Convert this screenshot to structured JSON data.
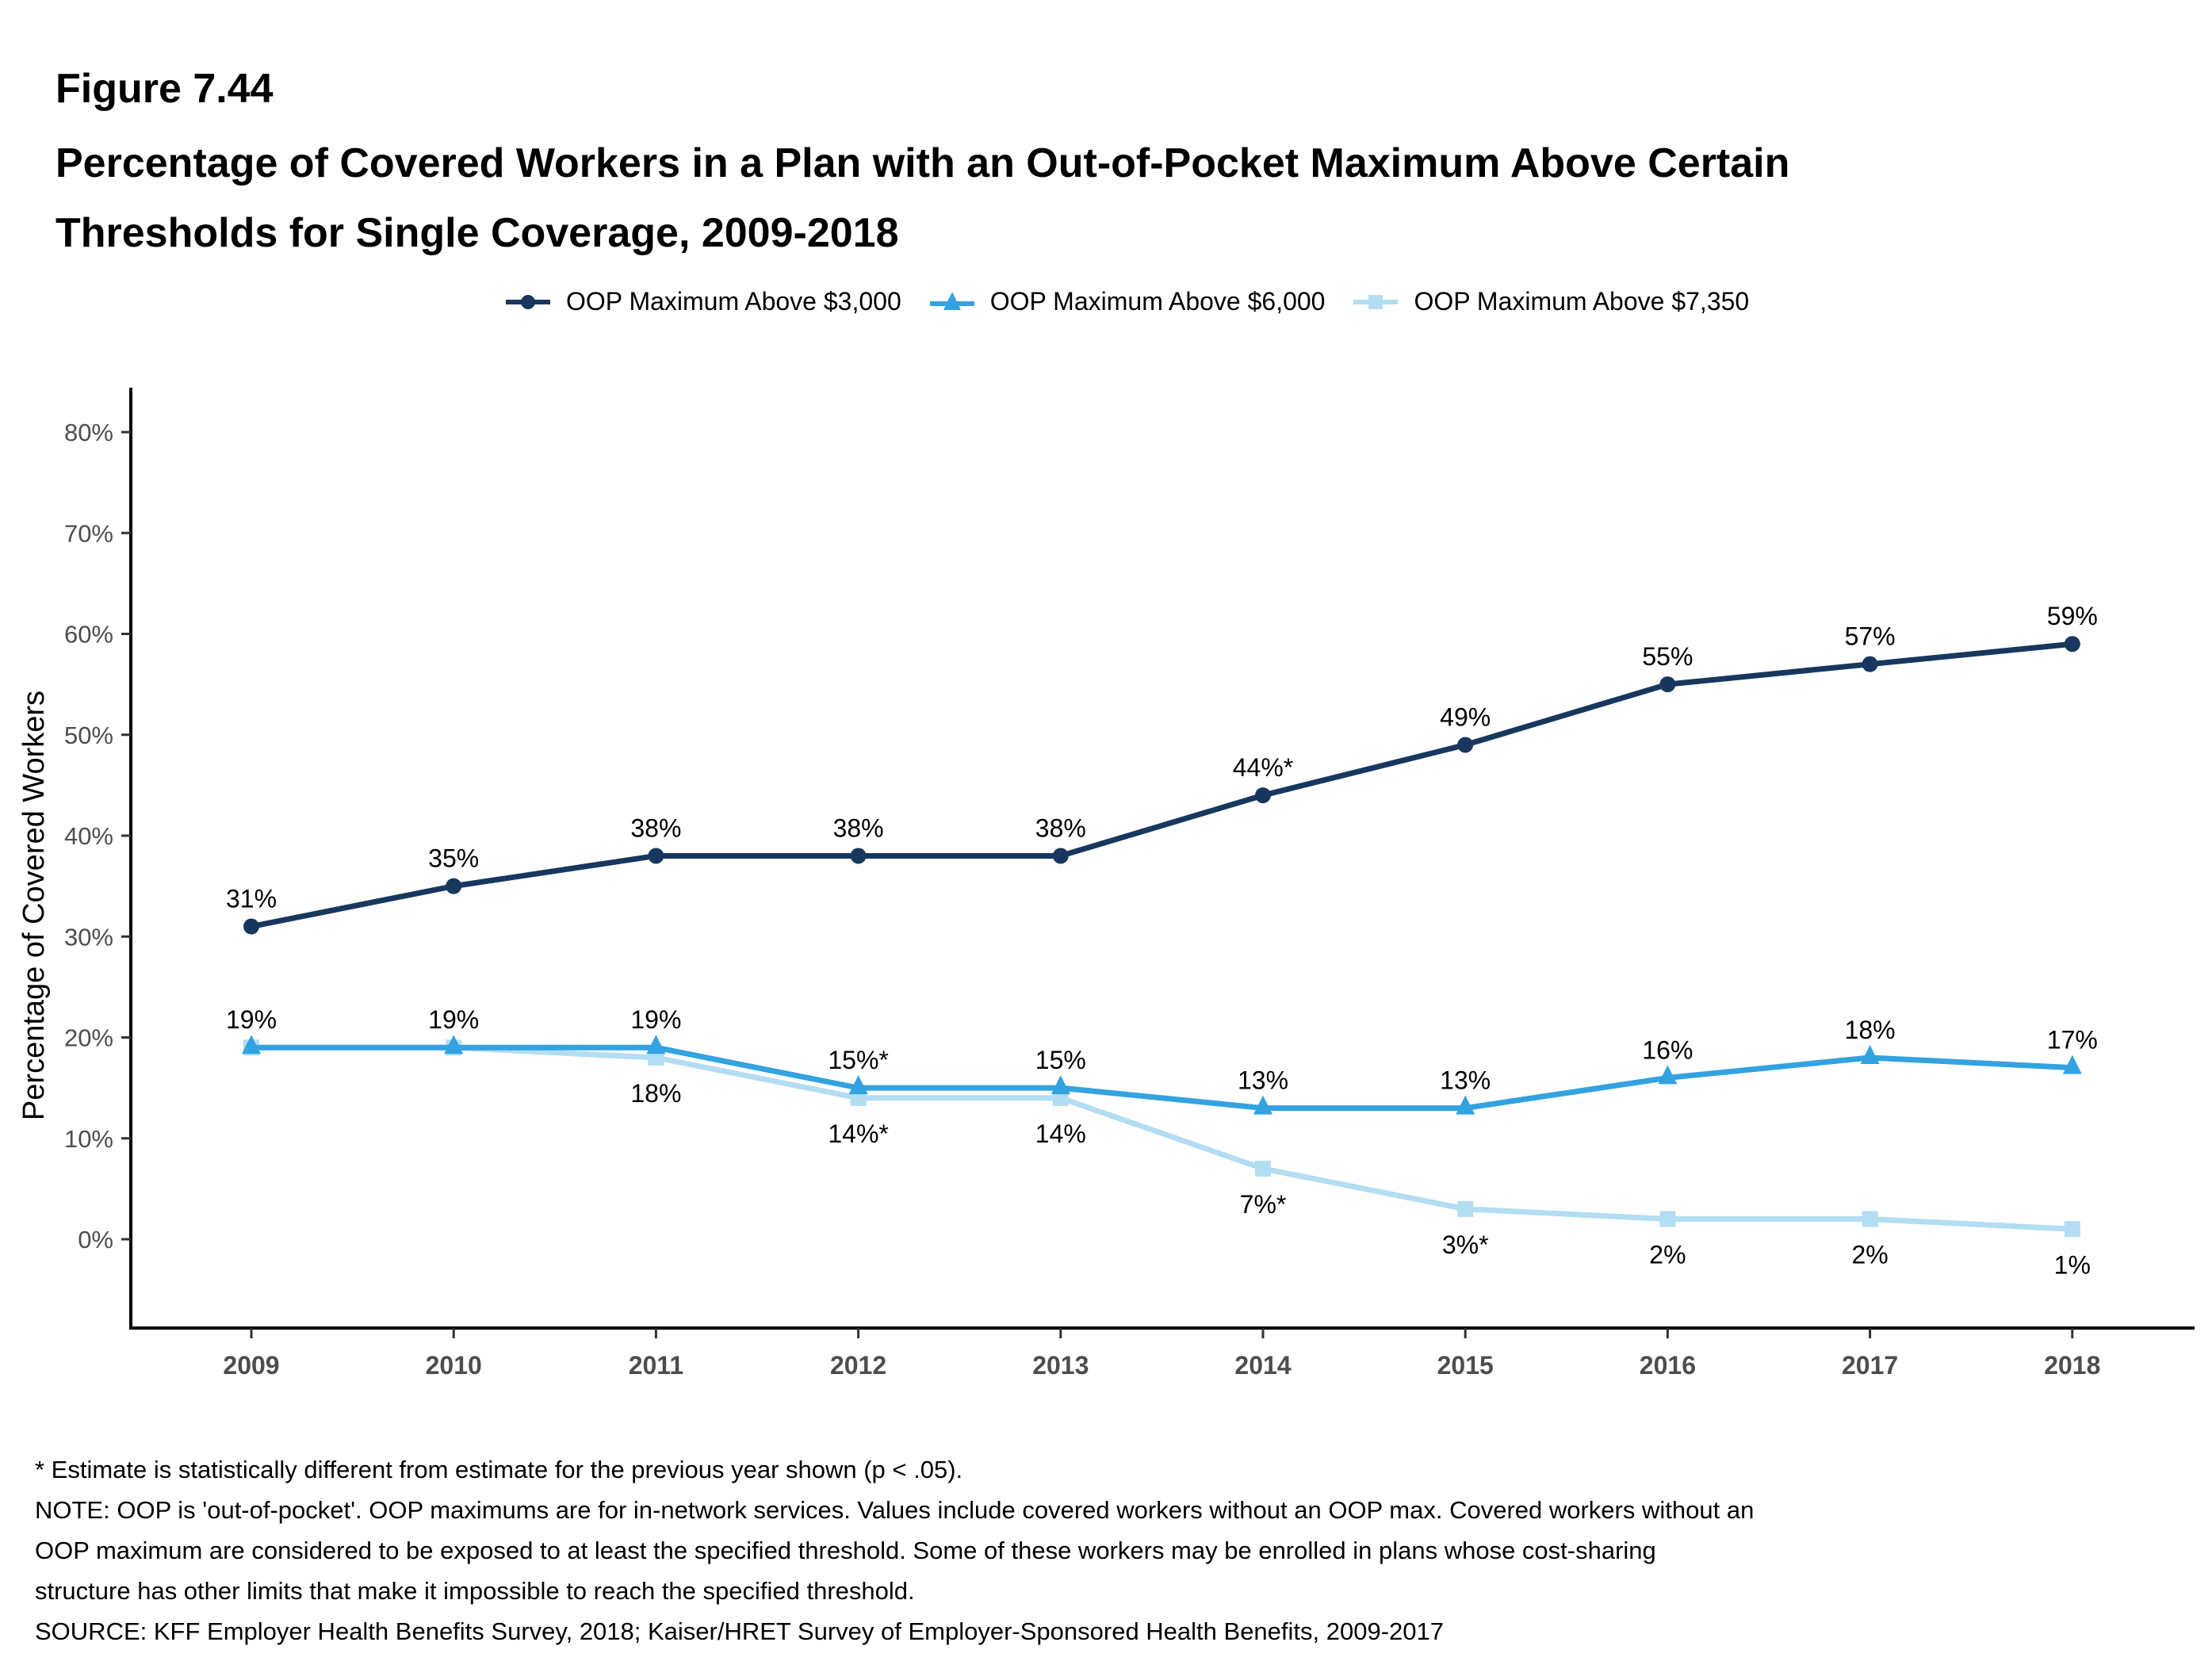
{
  "figure_label": "Figure 7.44",
  "title_lines": [
    "Percentage of Covered Workers in a Plan with an Out-of-Pocket Maximum Above Certain",
    "Thresholds for Single Coverage, 2009-2018"
  ],
  "footnotes": [
    "* Estimate is statistically different from estimate for the previous year shown (p < .05).",
    "NOTE: OOP is 'out-of-pocket'. OOP maximums are for in-network services. Values include covered workers without an OOP max. Covered workers without an",
    "OOP maximum are considered to be exposed to at least the specified threshold. Some of these workers may be enrolled in plans whose cost-sharing",
    "structure has other limits that make it impossible to reach the specified threshold.",
    "SOURCE: KFF Employer Health Benefits Survey, 2018; Kaiser/HRET Survey of Employer-Sponsored Health Benefits, 2009-2017"
  ],
  "chart_data": {
    "type": "line",
    "title": "Percentage of Covered Workers in a Plan with an Out-of-Pocket Maximum Above Certain Thresholds for Single Coverage, 2009-2018",
    "xlabel": "",
    "ylabel": "Percentage of Covered Workers",
    "x": [
      "2009",
      "2010",
      "2011",
      "2012",
      "2013",
      "2014",
      "2015",
      "2016",
      "2017",
      "2018"
    ],
    "ylim": [
      -9,
      84
    ],
    "yticks": [
      0,
      10,
      20,
      30,
      40,
      50,
      60,
      70,
      80
    ],
    "ytick_labels": [
      "0%",
      "10%",
      "20%",
      "30%",
      "40%",
      "50%",
      "60%",
      "70%",
      "80%"
    ],
    "grid": false,
    "legend_position": "top-center",
    "series": [
      {
        "name": "OOP Maximum Above $3,000",
        "color": "#17375e",
        "marker": "circle",
        "values": [
          31,
          35,
          38,
          38,
          38,
          44,
          49,
          55,
          57,
          59
        ],
        "labels": [
          "31%",
          "35%",
          "38%",
          "38%",
          "38%",
          "44%*",
          "49%",
          "55%",
          "57%",
          "59%"
        ],
        "label_position": "above"
      },
      {
        "name": "OOP Maximum Above $6,000",
        "color": "#33a2e0",
        "marker": "triangle",
        "values": [
          19,
          19,
          19,
          15,
          15,
          13,
          13,
          16,
          18,
          17
        ],
        "labels": [
          "19%",
          "19%",
          "19%",
          "15%*",
          "15%",
          "13%",
          "13%",
          "16%",
          "18%",
          "17%"
        ],
        "label_position": "above"
      },
      {
        "name": "OOP Maximum Above $7,350",
        "color": "#b3ddf3",
        "marker": "square",
        "values": [
          19,
          19,
          18,
          14,
          14,
          7,
          3,
          2,
          2,
          1
        ],
        "labels": [
          "",
          "",
          "18%",
          "14%*",
          "14%",
          "7%*",
          "3%*",
          "2%",
          "2%",
          "1%"
        ],
        "label_position": "below"
      }
    ]
  }
}
